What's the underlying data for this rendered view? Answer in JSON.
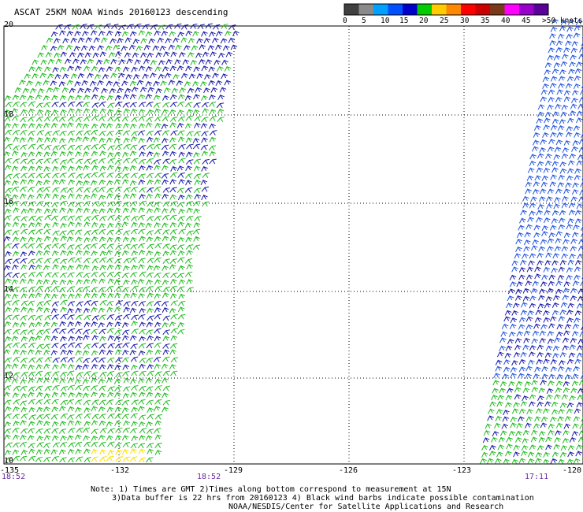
{
  "title": "ASCAT 25KM NOAA Winds 20160123 descending",
  "colorbar": {
    "labels": [
      "0",
      "5",
      "10",
      "15",
      "20",
      "25",
      "30",
      "35",
      "40",
      "45",
      ">50 knots"
    ],
    "colors": [
      "#404040",
      "#8a8a8a",
      "#00a0ff",
      "#0050ff",
      "#0000cc",
      "#00cc00",
      "#ffcc00",
      "#ff8800",
      "#ff0000",
      "#cc0000",
      "#7a3a1a",
      "#ff00ff",
      "#9900cc",
      "#5a0099"
    ]
  },
  "axes": {
    "lat_ticks": [
      "20",
      "18",
      "16",
      "14",
      "12",
      "10"
    ],
    "lon_ticks": [
      "-135",
      "-132",
      "-129",
      "-126",
      "-123",
      "-120"
    ]
  },
  "times": [
    "18:52",
    "18:52",
    "17:11"
  ],
  "notes": [
    "Note: 1) Times are GMT 2)Times along bottom correspond to measurement at 15N",
    "3)Data buffer is 22 hrs from 20160123 4) Black wind barbs indicate possible contamination",
    "NOAA/NESDIS/Center for Satellite Applications and Research"
  ],
  "map_features": {
    "swaths": [
      {
        "name": "west-swath",
        "dominant_colors": [
          "green",
          "blue"
        ]
      },
      {
        "name": "east-swath",
        "dominant_colors": [
          "blue",
          "green"
        ]
      }
    ]
  }
}
